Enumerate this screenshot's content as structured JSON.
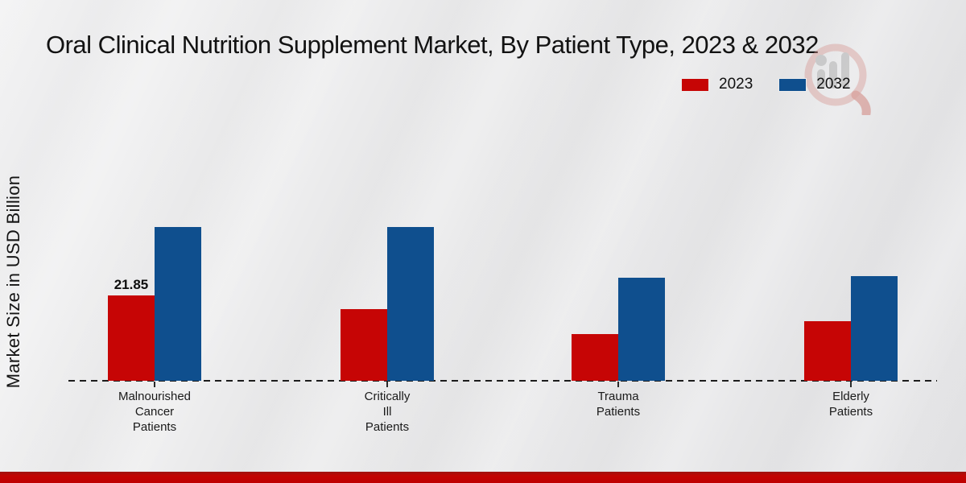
{
  "title": "Oral Clinical Nutrition Supplement Market, By Patient Type, 2023 & 2032",
  "ylabel": "Market Size in USD Billion",
  "colors": {
    "series_2023": "#c60505",
    "series_2032": "#0f4f8e",
    "footer_band": "#bf0101",
    "axis": "#1c1c1c"
  },
  "watermark": {
    "name": "market-research-future-logo"
  },
  "chart_data": {
    "type": "bar",
    "categories": [
      "Malnourished Cancer Patients",
      "Critically Ill Patients",
      "Trauma Patients",
      "Elderly Patients"
    ],
    "category_lines": [
      [
        "Malnourished",
        "Cancer",
        "Patients"
      ],
      [
        "Critically",
        "Ill",
        "Patients"
      ],
      [
        "Trauma",
        "Patients"
      ],
      [
        "Elderly",
        "Patients"
      ]
    ],
    "series": [
      {
        "name": "2023",
        "color": "#c60505",
        "values": [
          21.85,
          18.3,
          12.0,
          15.25
        ]
      },
      {
        "name": "2032",
        "color": "#0f4f8e",
        "values": [
          39.4,
          39.4,
          26.4,
          26.8
        ]
      }
    ],
    "data_labels": [
      {
        "series": "2023",
        "category_index": 0,
        "text": "21.85"
      }
    ],
    "title": "Oral Clinical Nutrition Supplement Market, By Patient Type, 2023 & 2032",
    "xlabel": "",
    "ylabel": "Market Size in USD Billion",
    "ylim": [
      0,
      45
    ],
    "grid": false,
    "legend_position": "top-right",
    "baseline_style": "dashed"
  }
}
